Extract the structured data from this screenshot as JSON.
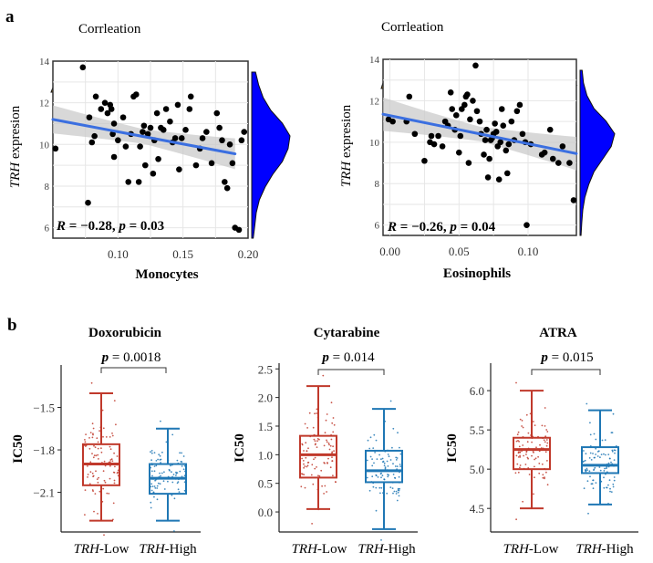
{
  "panel_labels": {
    "a": "a",
    "b": "b"
  },
  "colors": {
    "marginal_top": "#FFA500",
    "marginal_right": "#0000FF",
    "regression_line": "#3B6FE0",
    "confidence_band": "#C8C8C8",
    "point": "#000000",
    "low_group": "#C0392B",
    "high_group": "#1F77B4",
    "grid": "#E6E6E6"
  },
  "chart_data": [
    {
      "type": "scatter",
      "marginal_title": "Corrleation",
      "ylabel_italic": "TRH",
      "ylabel_rest": " expresion",
      "xlabel": "Monocytes",
      "xlim": [
        0.05,
        0.2
      ],
      "ylim": [
        5.5,
        14
      ],
      "xticks": [
        0.1,
        0.15,
        0.2
      ],
      "xtick_labels": [
        "0.10",
        "0.15",
        "0.20"
      ],
      "yticks": [
        6,
        8,
        10,
        12,
        14
      ],
      "ytick_labels": [
        "6",
        "8",
        "10",
        "12",
        "14"
      ],
      "annotation_R": "R",
      "annotation_R_value": " = −0.28, ",
      "annotation_p": "p",
      "annotation_p_value": " = 0.03",
      "regression": {
        "x0": 0.05,
        "y0": 11.2,
        "x1": 0.19,
        "y1": 9.55
      },
      "band_half_width": [
        0.6,
        0.35,
        0.65
      ],
      "marginal_x_curve": [
        0.15,
        0.35,
        0.5,
        0.52,
        0.45,
        0.5,
        0.6,
        0.75,
        0.85,
        0.95,
        1.0,
        0.95,
        0.85,
        0.7,
        0.55
      ],
      "marginal_y_curve": [
        0.1,
        0.18,
        0.3,
        0.5,
        0.8,
        1.0,
        0.95,
        0.8,
        0.55,
        0.35,
        0.2,
        0.12,
        0.08,
        0.04
      ],
      "points": [
        [
          0.052,
          9.8
        ],
        [
          0.073,
          13.7
        ],
        [
          0.077,
          7.2
        ],
        [
          0.078,
          11.3
        ],
        [
          0.08,
          10.1
        ],
        [
          0.082,
          10.4
        ],
        [
          0.083,
          12.3
        ],
        [
          0.087,
          11.7
        ],
        [
          0.09,
          12.0
        ],
        [
          0.092,
          11.5
        ],
        [
          0.094,
          11.9
        ],
        [
          0.095,
          11.7
        ],
        [
          0.096,
          10.5
        ],
        [
          0.097,
          9.4
        ],
        [
          0.097,
          11.0
        ],
        [
          0.1,
          10.2
        ],
        [
          0.104,
          11.3
        ],
        [
          0.106,
          9.9
        ],
        [
          0.108,
          8.2
        ],
        [
          0.11,
          10.5
        ],
        [
          0.112,
          12.3
        ],
        [
          0.114,
          12.4
        ],
        [
          0.116,
          8.2
        ],
        [
          0.117,
          9.9
        ],
        [
          0.119,
          10.6
        ],
        [
          0.12,
          10.9
        ],
        [
          0.121,
          9.0
        ],
        [
          0.123,
          10.5
        ],
        [
          0.125,
          10.8
        ],
        [
          0.127,
          8.6
        ],
        [
          0.128,
          10.2
        ],
        [
          0.13,
          11.5
        ],
        [
          0.131,
          9.3
        ],
        [
          0.133,
          10.8
        ],
        [
          0.135,
          10.7
        ],
        [
          0.137,
          11.7
        ],
        [
          0.14,
          11.1
        ],
        [
          0.142,
          10.1
        ],
        [
          0.144,
          10.3
        ],
        [
          0.146,
          11.9
        ],
        [
          0.147,
          8.8
        ],
        [
          0.149,
          10.3
        ],
        [
          0.152,
          10.7
        ],
        [
          0.155,
          11.7
        ],
        [
          0.156,
          12.3
        ],
        [
          0.16,
          9.0
        ],
        [
          0.163,
          9.8
        ],
        [
          0.165,
          10.3
        ],
        [
          0.168,
          10.6
        ],
        [
          0.172,
          9.1
        ],
        [
          0.176,
          11.5
        ],
        [
          0.178,
          10.8
        ],
        [
          0.18,
          10.2
        ],
        [
          0.182,
          8.2
        ],
        [
          0.184,
          7.9
        ],
        [
          0.186,
          10.0
        ],
        [
          0.188,
          9.1
        ],
        [
          0.19,
          6.0
        ],
        [
          0.193,
          5.9
        ],
        [
          0.195,
          10.2
        ],
        [
          0.197,
          10.6
        ]
      ]
    },
    {
      "type": "scatter",
      "marginal_title": "Corrleation",
      "ylabel_italic": "TRH",
      "ylabel_rest": " expresion",
      "xlabel": "Eosinophils",
      "xlim": [
        -0.005,
        0.135
      ],
      "ylim": [
        5.5,
        14
      ],
      "xticks": [
        0,
        0.05,
        0.1
      ],
      "xtick_labels": [
        "0.00",
        "0.05",
        "0.10"
      ],
      "yticks": [
        6,
        8,
        10,
        12,
        14
      ],
      "ytick_labels": [
        "6",
        "8",
        "10",
        "12",
        "14"
      ],
      "annotation_R": "R",
      "annotation_R_value": " = −0.26, ",
      "annotation_p": "p",
      "annotation_p_value": " = 0.04",
      "regression": {
        "x0": -0.005,
        "y0": 11.35,
        "x1": 0.135,
        "y1": 9.45
      },
      "band_half_width": [
        0.7,
        0.35,
        0.7
      ],
      "marginal_x_curve": [
        0.2,
        0.3,
        0.45,
        0.6,
        0.8,
        0.95,
        1.0,
        0.95,
        0.85,
        0.75,
        0.6,
        0.45,
        0.3,
        0.2,
        0.1
      ],
      "marginal_y_curve": [
        0.06,
        0.1,
        0.2,
        0.4,
        0.75,
        1.0,
        0.9,
        0.65,
        0.4,
        0.25,
        0.14,
        0.08,
        0.05,
        0.03
      ],
      "points": [
        [
          -0.001,
          11.1
        ],
        [
          0.002,
          11.0
        ],
        [
          0.012,
          11.0
        ],
        [
          0.014,
          12.2
        ],
        [
          0.018,
          10.4
        ],
        [
          0.025,
          9.1
        ],
        [
          0.029,
          10.0
        ],
        [
          0.03,
          10.3
        ],
        [
          0.032,
          9.9
        ],
        [
          0.035,
          10.3
        ],
        [
          0.038,
          9.8
        ],
        [
          0.04,
          11.0
        ],
        [
          0.042,
          10.8
        ],
        [
          0.044,
          12.4
        ],
        [
          0.045,
          11.6
        ],
        [
          0.047,
          10.6
        ],
        [
          0.048,
          11.3
        ],
        [
          0.05,
          9.5
        ],
        [
          0.051,
          10.3
        ],
        [
          0.052,
          11.6
        ],
        [
          0.054,
          11.8
        ],
        [
          0.055,
          12.2
        ],
        [
          0.056,
          12.3
        ],
        [
          0.057,
          9.0
        ],
        [
          0.058,
          11.1
        ],
        [
          0.06,
          12.0
        ],
        [
          0.062,
          13.7
        ],
        [
          0.063,
          11.5
        ],
        [
          0.065,
          11.0
        ],
        [
          0.066,
          10.4
        ],
        [
          0.068,
          9.4
        ],
        [
          0.069,
          10.1
        ],
        [
          0.07,
          10.6
        ],
        [
          0.071,
          8.3
        ],
        [
          0.072,
          9.2
        ],
        [
          0.073,
          10.1
        ],
        [
          0.074,
          10.2
        ],
        [
          0.075,
          10.4
        ],
        [
          0.076,
          10.9
        ],
        [
          0.077,
          10.5
        ],
        [
          0.078,
          9.8
        ],
        [
          0.079,
          8.2
        ],
        [
          0.08,
          10.0
        ],
        [
          0.081,
          11.6
        ],
        [
          0.082,
          10.8
        ],
        [
          0.084,
          9.6
        ],
        [
          0.085,
          8.5
        ],
        [
          0.086,
          9.9
        ],
        [
          0.088,
          11.0
        ],
        [
          0.09,
          10.1
        ],
        [
          0.092,
          11.5
        ],
        [
          0.094,
          11.8
        ],
        [
          0.096,
          10.4
        ],
        [
          0.098,
          10.0
        ],
        [
          0.099,
          6.0
        ],
        [
          0.102,
          9.9
        ],
        [
          0.11,
          9.4
        ],
        [
          0.112,
          9.5
        ],
        [
          0.116,
          10.6
        ],
        [
          0.118,
          9.2
        ],
        [
          0.122,
          9.0
        ],
        [
          0.125,
          9.8
        ],
        [
          0.13,
          9.0
        ],
        [
          0.133,
          7.2
        ]
      ]
    },
    {
      "type": "box",
      "title": "Doxorubicin",
      "ylabel": "IC50",
      "ylim": [
        -2.38,
        -1.2
      ],
      "yticks": [
        -1.5,
        -1.8,
        -2.1
      ],
      "ytick_labels": [
        "−1.5",
        "−1.8",
        "−2.1"
      ],
      "categories": [
        {
          "italic": "TRH",
          "rest": "-Low"
        },
        {
          "italic": "TRH",
          "rest": "-High"
        }
      ],
      "pvalue_label": "p",
      "pvalue_text": " = 0.0018",
      "groups": [
        {
          "name": "TRH-Low",
          "min": -2.3,
          "q1": -2.05,
          "median": -1.9,
          "q3": -1.76,
          "max": -1.4
        },
        {
          "name": "TRH-High",
          "min": -2.3,
          "q1": -2.11,
          "median": -2.0,
          "q3": -1.9,
          "max": -1.65
        }
      ]
    },
    {
      "type": "box",
      "title": "Cytarabine",
      "ylabel": "IC50",
      "ylim": [
        -0.35,
        2.6
      ],
      "yticks": [
        0,
        0.5,
        1,
        1.5,
        2,
        2.5
      ],
      "ytick_labels": [
        "0.0",
        "0.5",
        "1.0",
        "1.5",
        "2.0",
        "2.5"
      ],
      "categories": [
        {
          "italic": "TRH",
          "rest": "-Low"
        },
        {
          "italic": "TRH",
          "rest": "-High"
        }
      ],
      "pvalue_label": "p",
      "pvalue_text": " = 0.014",
      "groups": [
        {
          "name": "TRH-Low",
          "min": 0.05,
          "q1": 0.6,
          "median": 1.0,
          "q3": 1.33,
          "max": 2.2
        },
        {
          "name": "TRH-High",
          "min": -0.3,
          "q1": 0.52,
          "median": 0.72,
          "q3": 1.07,
          "max": 1.8
        }
      ]
    },
    {
      "type": "box",
      "title": "ATRA",
      "ylabel": "IC50",
      "ylim": [
        4.2,
        6.35
      ],
      "yticks": [
        4.5,
        5,
        5.5,
        6
      ],
      "ytick_labels": [
        "4.5",
        "5.0",
        "5.5",
        "6.0"
      ],
      "categories": [
        {
          "italic": "TRH",
          "rest": "-Low"
        },
        {
          "italic": "TRH",
          "rest": "-High"
        }
      ],
      "pvalue_label": "p",
      "pvalue_text": " = 0.015",
      "groups": [
        {
          "name": "TRH-Low",
          "min": 4.5,
          "q1": 5.0,
          "median": 5.25,
          "q3": 5.4,
          "max": 6.0
        },
        {
          "name": "TRH-High",
          "min": 4.55,
          "q1": 4.95,
          "median": 5.05,
          "q3": 5.28,
          "max": 5.75
        }
      ]
    }
  ]
}
